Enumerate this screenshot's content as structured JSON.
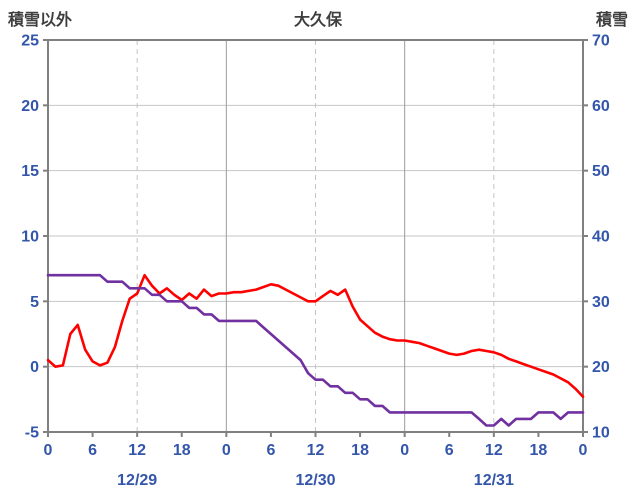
{
  "chart_data": {
    "type": "line",
    "title": "大久保",
    "x_range": [
      0,
      72
    ],
    "x_ticks": [
      {
        "hour": 0,
        "label": "0"
      },
      {
        "hour": 6,
        "label": "6"
      },
      {
        "hour": 12,
        "label": "12"
      },
      {
        "hour": 18,
        "label": "18"
      },
      {
        "hour": 24,
        "label": "0"
      },
      {
        "hour": 30,
        "label": "6"
      },
      {
        "hour": 36,
        "label": "12"
      },
      {
        "hour": 42,
        "label": "18"
      },
      {
        "hour": 48,
        "label": "0"
      },
      {
        "hour": 54,
        "label": "6"
      },
      {
        "hour": 60,
        "label": "12"
      },
      {
        "hour": 66,
        "label": "18"
      },
      {
        "hour": 72,
        "label": "0"
      }
    ],
    "day_labels": [
      {
        "hour": 12,
        "label": "12/29"
      },
      {
        "hour": 36,
        "label": "12/30"
      },
      {
        "hour": 60,
        "label": "12/31"
      }
    ],
    "left_axis": {
      "title": "積雪以外",
      "min": -5,
      "max": 25,
      "tick_interval": 5,
      "ticks": [
        -5,
        0,
        5,
        10,
        15,
        20,
        25
      ]
    },
    "right_axis": {
      "title": "積雪",
      "min": 10,
      "max": 70,
      "tick_interval": 10,
      "ticks": [
        10,
        20,
        30,
        40,
        50,
        60,
        70
      ]
    },
    "v_gridlines": [
      {
        "hour": 12,
        "style": "dashed"
      },
      {
        "hour": 24,
        "style": "solid"
      },
      {
        "hour": 36,
        "style": "dashed"
      },
      {
        "hour": 48,
        "style": "solid"
      },
      {
        "hour": 60,
        "style": "dashed"
      }
    ],
    "grid": {
      "horizontal": "solid",
      "legend": "none"
    },
    "style": {
      "label_color": "#3355AA",
      "title_color": "#3F3F3F",
      "frame_color": "#808080",
      "grid_color": "#C4C4C4",
      "grid_solid_color": "#9C9C9C",
      "background": "#FFFFFF"
    },
    "series": [
      {
        "name": "積雪以外",
        "axis": "left",
        "color": "#FF0000",
        "x_start": 0,
        "x_step": 1,
        "values": [
          0.5,
          0.0,
          0.1,
          2.5,
          3.2,
          1.3,
          0.4,
          0.1,
          0.3,
          1.5,
          3.5,
          5.2,
          5.6,
          7.0,
          6.2,
          5.6,
          6.0,
          5.5,
          5.1,
          5.6,
          5.2,
          5.9,
          5.4,
          5.6,
          5.6,
          5.7,
          5.7,
          5.8,
          5.9,
          6.1,
          6.3,
          6.2,
          5.9,
          5.6,
          5.3,
          5.0,
          5.0,
          5.4,
          5.8,
          5.5,
          5.9,
          4.6,
          3.6,
          3.1,
          2.6,
          2.3,
          2.1,
          2.0,
          2.0,
          1.9,
          1.8,
          1.6,
          1.4,
          1.2,
          1.0,
          0.9,
          1.0,
          1.2,
          1.3,
          1.2,
          1.1,
          0.9,
          0.6,
          0.4,
          0.2,
          0.0,
          -0.2,
          -0.4,
          -0.6,
          -0.9,
          -1.2,
          -1.7,
          -2.3
        ]
      },
      {
        "name": "積雪",
        "axis": "right",
        "color": "#7030A0",
        "x_start": 0,
        "x_step": 1,
        "values": [
          34,
          34,
          34,
          34,
          34,
          34,
          34,
          34,
          33,
          33,
          33,
          32,
          32,
          32,
          31,
          31,
          30,
          30,
          30,
          29,
          29,
          28,
          28,
          27,
          27,
          27,
          27,
          27,
          27,
          26,
          25,
          24,
          23,
          22,
          21,
          19,
          18,
          18,
          17,
          17,
          16,
          16,
          15,
          15,
          14,
          14,
          13,
          13,
          13,
          13,
          13,
          13,
          13,
          13,
          13,
          13,
          13,
          13,
          12,
          11,
          11,
          12,
          11,
          12,
          12,
          12,
          13,
          13,
          13,
          12,
          13,
          13,
          13
        ]
      }
    ]
  }
}
